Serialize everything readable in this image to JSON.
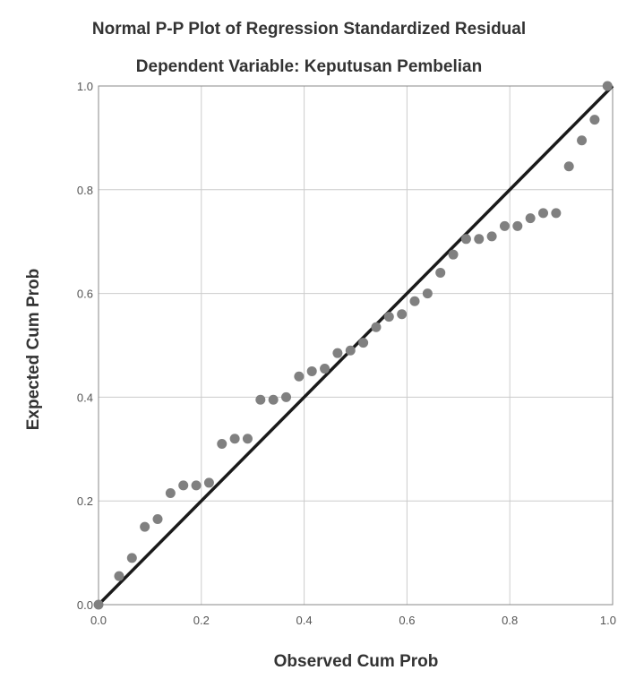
{
  "chart_data": {
    "type": "scatter",
    "title": "Normal P-P Plot of Regression Standardized Residual",
    "subtitle": "Dependent Variable: Keputusan Pembelian",
    "xlabel": "Observed Cum Prob",
    "ylabel": "Expected Cum Prob",
    "xlim": [
      0,
      1
    ],
    "ylim": [
      0,
      1
    ],
    "xticks": [
      "0.0",
      "0.2",
      "0.4",
      "0.6",
      "0.8",
      "1.0"
    ],
    "yticks": [
      "0.0",
      "0.2",
      "0.4",
      "0.6",
      "0.8",
      "1.0"
    ],
    "grid": true,
    "reference_line": {
      "from": [
        0,
        0
      ],
      "to": [
        1,
        1
      ]
    },
    "colors": {
      "points": "#808080",
      "line": "#1a1a1a",
      "grid": "#cccccc",
      "frame": "#888888"
    },
    "points": [
      {
        "x": 0.0,
        "y": 0.0
      },
      {
        "x": 0.04,
        "y": 0.055
      },
      {
        "x": 0.065,
        "y": 0.09
      },
      {
        "x": 0.09,
        "y": 0.15
      },
      {
        "x": 0.115,
        "y": 0.165
      },
      {
        "x": 0.14,
        "y": 0.215
      },
      {
        "x": 0.165,
        "y": 0.23
      },
      {
        "x": 0.19,
        "y": 0.23
      },
      {
        "x": 0.215,
        "y": 0.235
      },
      {
        "x": 0.24,
        "y": 0.31
      },
      {
        "x": 0.265,
        "y": 0.32
      },
      {
        "x": 0.29,
        "y": 0.32
      },
      {
        "x": 0.315,
        "y": 0.395
      },
      {
        "x": 0.34,
        "y": 0.395
      },
      {
        "x": 0.365,
        "y": 0.4
      },
      {
        "x": 0.39,
        "y": 0.44
      },
      {
        "x": 0.415,
        "y": 0.45
      },
      {
        "x": 0.44,
        "y": 0.455
      },
      {
        "x": 0.465,
        "y": 0.485
      },
      {
        "x": 0.49,
        "y": 0.49
      },
      {
        "x": 0.515,
        "y": 0.505
      },
      {
        "x": 0.54,
        "y": 0.535
      },
      {
        "x": 0.565,
        "y": 0.555
      },
      {
        "x": 0.59,
        "y": 0.56
      },
      {
        "x": 0.615,
        "y": 0.585
      },
      {
        "x": 0.64,
        "y": 0.6
      },
      {
        "x": 0.665,
        "y": 0.64
      },
      {
        "x": 0.69,
        "y": 0.675
      },
      {
        "x": 0.715,
        "y": 0.705
      },
      {
        "x": 0.74,
        "y": 0.705
      },
      {
        "x": 0.765,
        "y": 0.71
      },
      {
        "x": 0.79,
        "y": 0.73
      },
      {
        "x": 0.815,
        "y": 0.73
      },
      {
        "x": 0.84,
        "y": 0.745
      },
      {
        "x": 0.865,
        "y": 0.755
      },
      {
        "x": 0.89,
        "y": 0.755
      },
      {
        "x": 0.915,
        "y": 0.845
      },
      {
        "x": 0.94,
        "y": 0.895
      },
      {
        "x": 0.965,
        "y": 0.935
      },
      {
        "x": 0.99,
        "y": 1.0
      }
    ]
  }
}
